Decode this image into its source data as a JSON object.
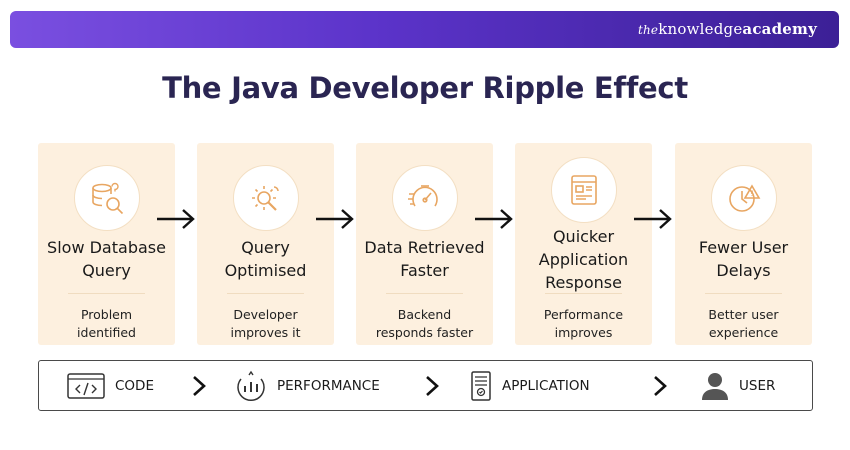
{
  "header": {
    "brand_prefix": "the",
    "brand_main": "knowledge",
    "brand_bold": "academy",
    "accent_start": "#7a4fe0",
    "accent_end": "#3c2096"
  },
  "title": "The Java Developer Ripple Effect",
  "steps": [
    {
      "icon": "database-question-icon",
      "title_lines": [
        "Slow Database",
        "Query"
      ],
      "desc_lines": [
        "Problem",
        "identified"
      ]
    },
    {
      "icon": "gear-optimise-icon",
      "title_lines": [
        "Query",
        "Optimised"
      ],
      "desc_lines": [
        "Developer",
        "improves it"
      ]
    },
    {
      "icon": "speedometer-icon",
      "title_lines": [
        "Data Retrieved",
        "Faster"
      ],
      "desc_lines": [
        "Backend",
        "responds faster"
      ]
    },
    {
      "icon": "app-window-icon",
      "title_lines": [
        "Quicker",
        "Application",
        "Response"
      ],
      "desc_lines": [
        "Performance",
        "improves"
      ]
    },
    {
      "icon": "clock-alert-icon",
      "title_lines": [
        "Fewer User",
        "Delays"
      ],
      "desc_lines": [
        "Better user",
        "experience"
      ]
    }
  ],
  "flow": [
    {
      "icon": "code-icon",
      "label": "CODE"
    },
    {
      "icon": "performance-icon",
      "label": "PERFORMANCE"
    },
    {
      "icon": "application-icon",
      "label": "APPLICATION"
    },
    {
      "icon": "user-icon",
      "label": "USER"
    }
  ],
  "colors": {
    "card_bg": "#fdf0df",
    "icon_line": "#e8a662",
    "title": "#2a2552"
  }
}
